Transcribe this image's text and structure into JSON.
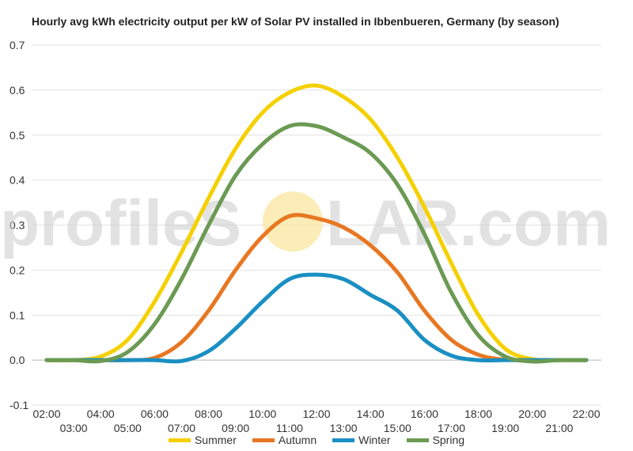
{
  "chart_data": {
    "type": "line",
    "title": "Hourly avg kWh electricity output per kW of Solar PV installed in Ibbenbueren, Germany (by season)",
    "xlabel": "",
    "ylabel": "",
    "ylim": [
      -0.1,
      0.7
    ],
    "yticks": [
      -0.1,
      0.0,
      0.1,
      0.2,
      0.3,
      0.4,
      0.5,
      0.6,
      0.7
    ],
    "ytick_labels": [
      "-0.1",
      "0.0",
      "0.1",
      "0.2",
      "0.3",
      "0.4",
      "0.5",
      "0.6",
      "0.7"
    ],
    "x": [
      "02:00",
      "03:00",
      "04:00",
      "05:00",
      "06:00",
      "07:00",
      "08:00",
      "09:00",
      "10:00",
      "11:00",
      "12:00",
      "13:00",
      "14:00",
      "15:00",
      "16:00",
      "17:00",
      "18:00",
      "19:00",
      "20:00",
      "21:00",
      "22:00"
    ],
    "grid": true,
    "legend_position": "bottom",
    "series": [
      {
        "name": "Summer",
        "color": "#f5d000",
        "values": [
          0.0,
          0.0,
          0.008,
          0.045,
          0.13,
          0.24,
          0.36,
          0.47,
          0.55,
          0.595,
          0.61,
          0.585,
          0.535,
          0.45,
          0.34,
          0.215,
          0.1,
          0.025,
          0.002,
          0.0,
          0.0
        ]
      },
      {
        "name": "Autumn",
        "color": "#e87722",
        "values": [
          0.0,
          0.0,
          0.0,
          0.0,
          0.005,
          0.04,
          0.11,
          0.2,
          0.275,
          0.32,
          0.315,
          0.295,
          0.255,
          0.195,
          0.11,
          0.045,
          0.012,
          0.001,
          0.0,
          0.0,
          0.0
        ]
      },
      {
        "name": "Winter",
        "color": "#1a8fc2",
        "values": [
          0.0,
          0.0,
          0.0,
          0.0,
          0.0,
          -0.002,
          0.02,
          0.07,
          0.13,
          0.18,
          0.19,
          0.18,
          0.145,
          0.11,
          0.045,
          0.01,
          0.0,
          0.0,
          0.0,
          0.0,
          0.0
        ]
      },
      {
        "name": "Spring",
        "color": "#6b9a53",
        "values": [
          0.0,
          0.0,
          -0.002,
          0.018,
          0.08,
          0.18,
          0.3,
          0.41,
          0.48,
          0.52,
          0.52,
          0.495,
          0.46,
          0.39,
          0.28,
          0.15,
          0.055,
          0.008,
          -0.003,
          0.0,
          0.0
        ]
      }
    ]
  },
  "watermark": {
    "text_before": "profileS",
    "text_after": "LAR.com",
    "sun_color": "#fbe6a0"
  }
}
